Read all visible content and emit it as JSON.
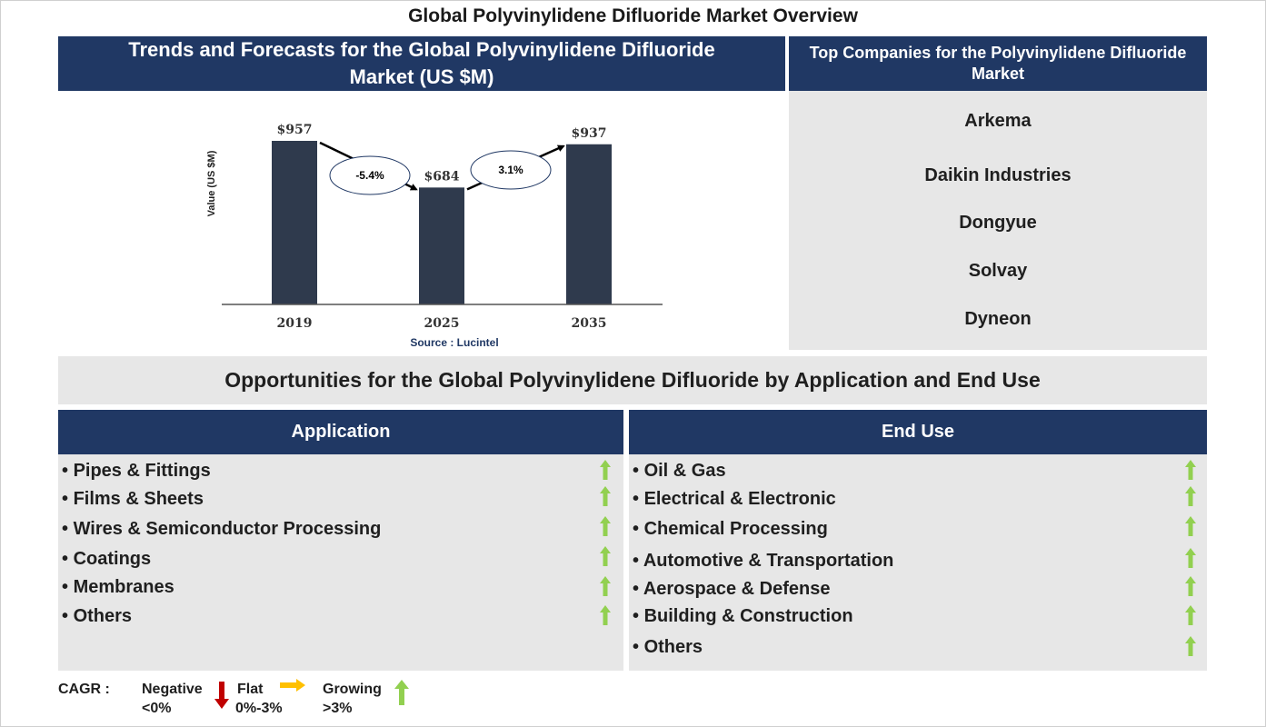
{
  "title": "Global Polyvinylidene Difluoride Market Overview",
  "trends_header": "Trends and Forecasts for the Global Polyvinylidene Difluoride Market (US $M)",
  "companies_header": "Top Companies for the Polyvinylidene Difluoride Market",
  "companies": [
    "Arkema",
    "Daikin Industries",
    "Dongyue",
    "Solvay",
    "Dyneon"
  ],
  "chart_data": {
    "type": "bar",
    "categories": [
      "2019",
      "2025",
      "2035"
    ],
    "values": [
      957,
      684,
      937
    ],
    "value_labels": [
      "$957",
      "$684",
      "$937"
    ],
    "ylabel": "Value (US $M)",
    "source": "Source : Lucintel",
    "cagr_labels": [
      "-5.4%",
      "3.1%"
    ],
    "bar_color": "#2f3a4d"
  },
  "opportunities_title": "Opportunities for the Global Polyvinylidene Difluoride by Application and End Use",
  "application": {
    "header": "Application",
    "items": [
      "Pipes & Fittings",
      "Films & Sheets",
      "Wires & Semiconductor Processing",
      "Coatings",
      "Membranes",
      "Others"
    ]
  },
  "end_use": {
    "header": "End Use",
    "items": [
      "Oil & Gas",
      "Electrical & Electronic",
      "Chemical Processing",
      "Automotive & Transportation",
      "Aerospace & Defense",
      "Building & Construction",
      "Others"
    ]
  },
  "legend": {
    "cagr": "CAGR :",
    "negative": "Negative",
    "negative_range": "<0%",
    "flat": "Flat",
    "flat_range": "0%-3%",
    "growing": "Growing",
    "growing_range": ">3%"
  },
  "colors": {
    "navy": "#203864",
    "panel_gray": "#e7e7e7",
    "up_arrow": "#92d050",
    "down_arrow": "#c00000",
    "flat_arrow": "#ffc000"
  },
  "icons": {
    "growing": "up-arrow-icon",
    "negative": "down-arrow-icon",
    "flat": "right-arrow-icon"
  }
}
